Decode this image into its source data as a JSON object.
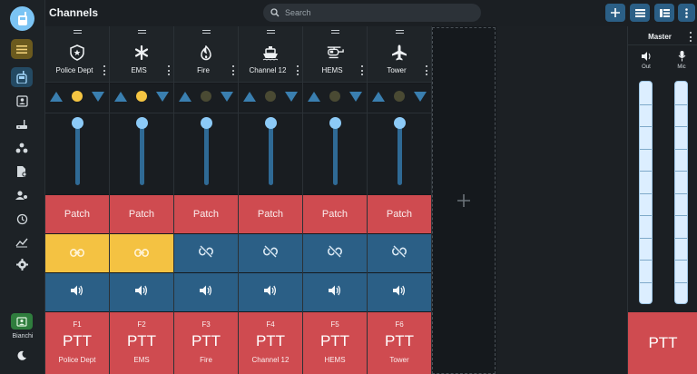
{
  "header": {
    "title": "Channels",
    "search_placeholder": "Search"
  },
  "toolbar": {
    "buttons": [
      "plus-icon",
      "grid-view-icon",
      "list-view-icon",
      "more-vert-icon"
    ]
  },
  "sidebar": {
    "items": [
      "radio-icon",
      "contacts-icon",
      "router-icon",
      "group-icon",
      "file-settings-icon",
      "manage-users-icon",
      "history-icon",
      "analytics-icon",
      "settings-icon"
    ],
    "user": {
      "name": "Bianchi"
    }
  },
  "channels": [
    {
      "name": "Police Dept",
      "icon": "shield-star-icon",
      "fkey": "F1",
      "ptt": "PTT",
      "patch": "Patch",
      "active": true,
      "linked": true,
      "volume_level": 1.0
    },
    {
      "name": "EMS",
      "icon": "asterisk-icon",
      "fkey": "F2",
      "ptt": "PTT",
      "patch": "Patch",
      "active": true,
      "linked": true,
      "volume_level": 1.0
    },
    {
      "name": "Fire",
      "icon": "flame-icon",
      "fkey": "F3",
      "ptt": "PTT",
      "patch": "Patch",
      "active": false,
      "linked": false,
      "volume_level": 1.0
    },
    {
      "name": "Channel 12",
      "icon": "ship-icon",
      "fkey": "F4",
      "ptt": "PTT",
      "patch": "Patch",
      "active": false,
      "linked": false,
      "volume_level": 1.0
    },
    {
      "name": "HEMS",
      "icon": "helicopter-icon",
      "fkey": "F5",
      "ptt": "PTT",
      "patch": "Patch",
      "active": false,
      "linked": false,
      "volume_level": 1.0
    },
    {
      "name": "Tower",
      "icon": "airplane-icon",
      "fkey": "F6",
      "ptt": "PTT",
      "patch": "Patch",
      "active": false,
      "linked": false,
      "volume_level": 1.0
    }
  ],
  "master": {
    "title": "Master",
    "out_label": "Out",
    "mic_label": "Mic",
    "ptt": "PTT"
  },
  "colors": {
    "accent": "#2b5f86",
    "ptt": "#cf4b50",
    "linked": "#f4c242",
    "knob": "#8ccaf7"
  }
}
